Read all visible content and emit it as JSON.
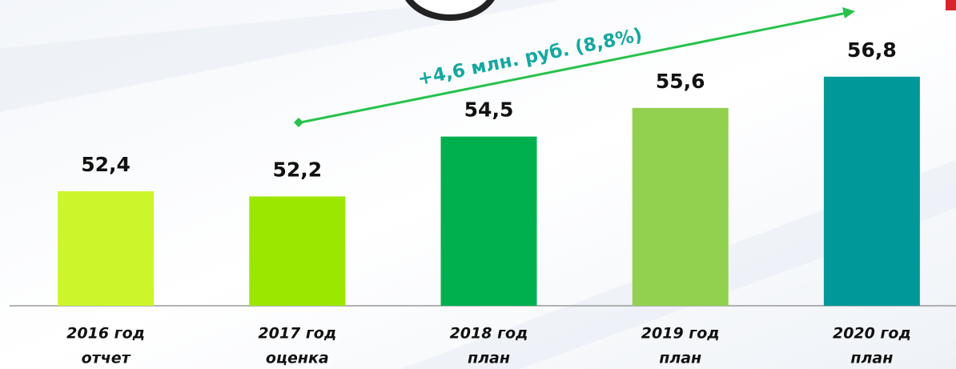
{
  "chart_data": {
    "type": "bar",
    "categories": [
      [
        "2016 год",
        "отчет"
      ],
      [
        "2017 год",
        "оценка"
      ],
      [
        "2018 год",
        "план"
      ],
      [
        "2019 год",
        "план"
      ],
      [
        "2020 год",
        "план"
      ]
    ],
    "values": [
      52.4,
      52.2,
      54.5,
      55.6,
      56.8
    ],
    "value_labels": [
      "52,4",
      "52,2",
      "54,5",
      "55,6",
      "56,8"
    ],
    "colors": [
      "#ccf52b",
      "#9be700",
      "#00b04f",
      "#92d050",
      "#009999"
    ],
    "ylim": [
      48,
      59.5
    ],
    "annotation": "+4,6 млн. руб. (8,8%)"
  }
}
